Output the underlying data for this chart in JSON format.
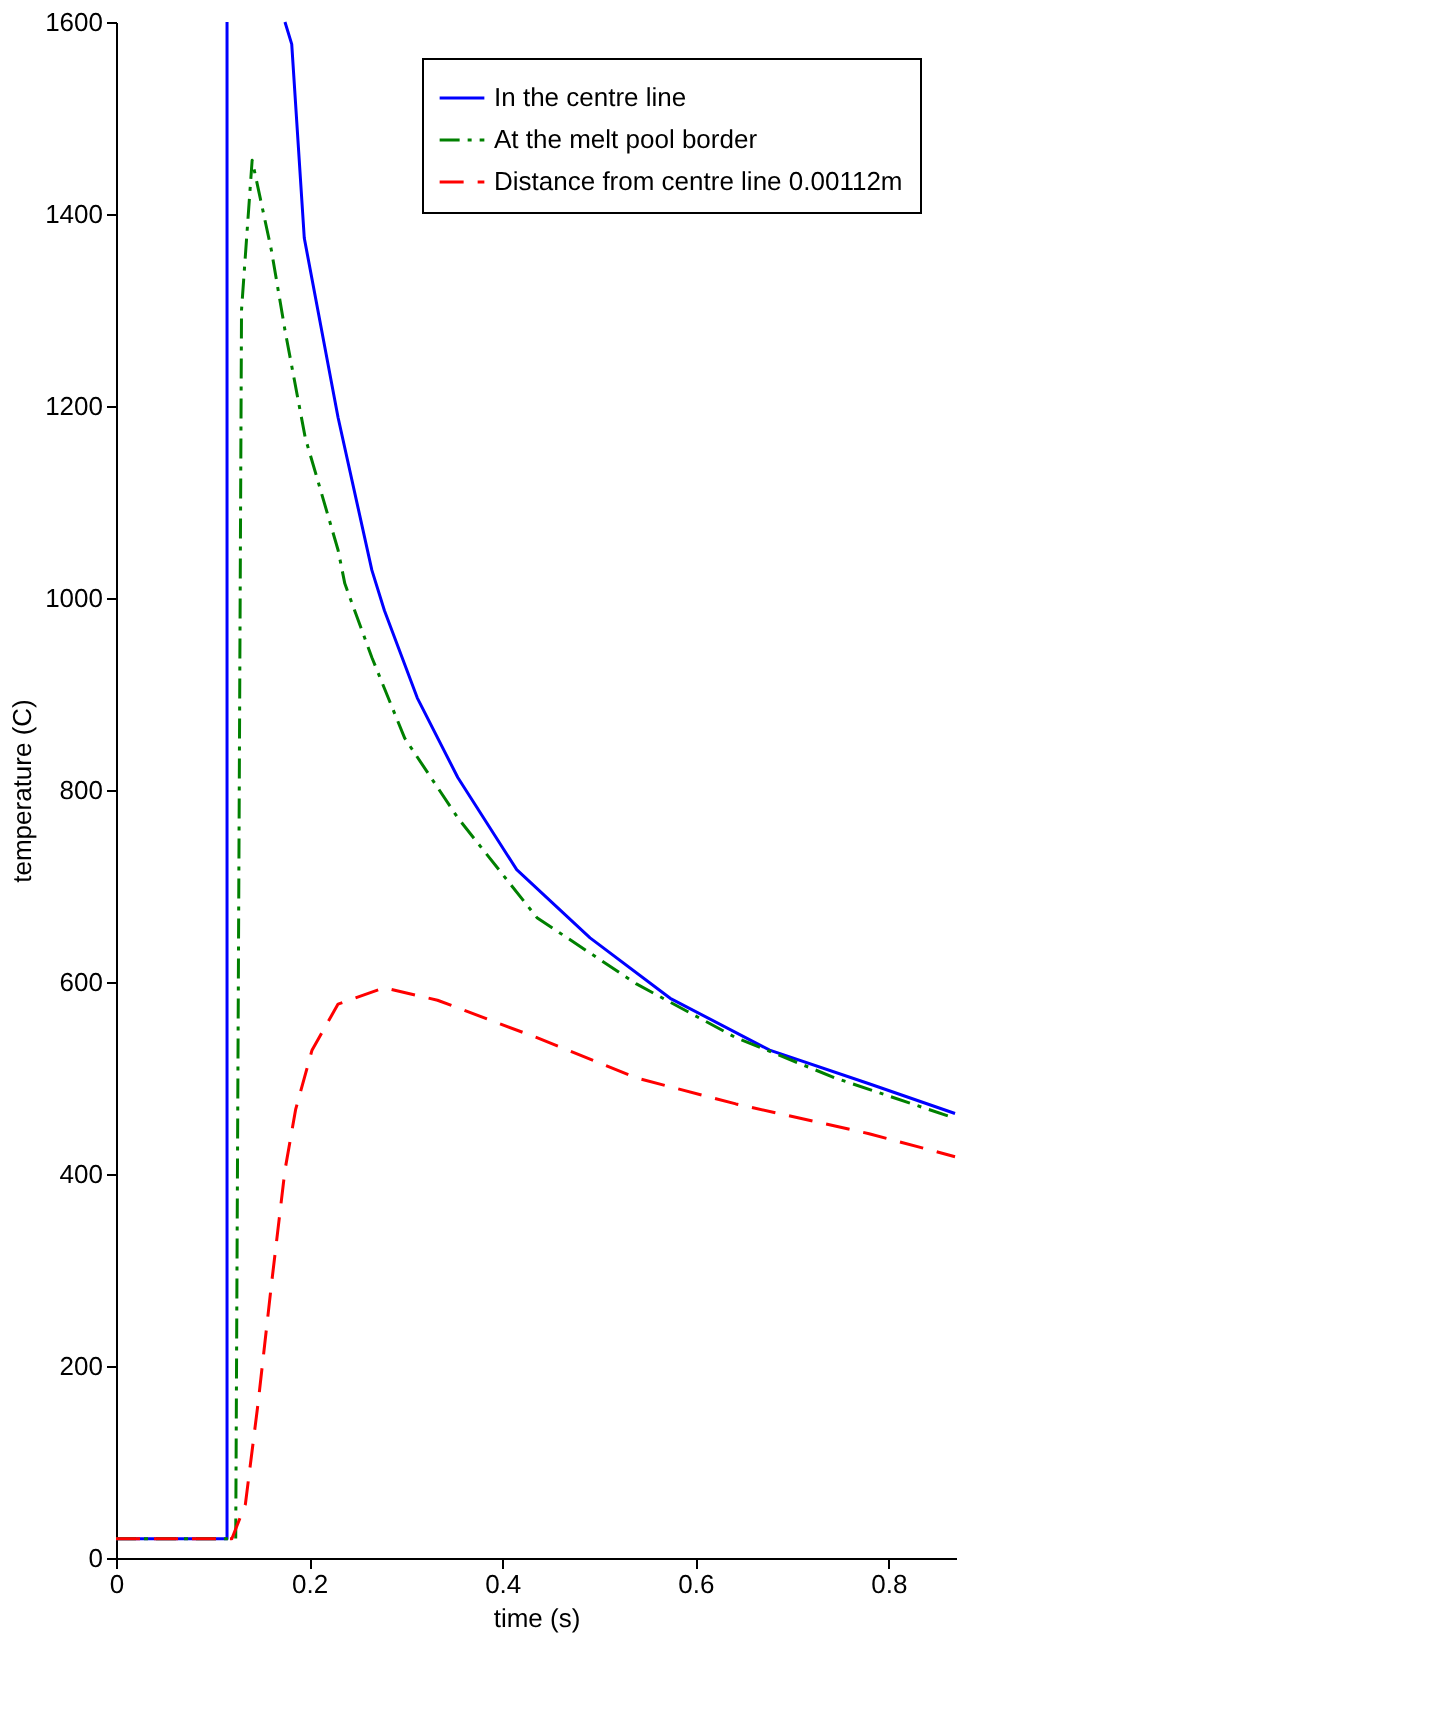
{
  "chart_data": {
    "type": "line",
    "xlabel": "time (s)",
    "ylabel": "temperature (C)",
    "xlim": [
      0,
      0.87
    ],
    "ylim": [
      0,
      1600
    ],
    "xticks": [
      0,
      0.2,
      0.4,
      0.6,
      0.8
    ],
    "yticks": [
      0,
      200,
      400,
      600,
      800,
      1000,
      1200,
      1400,
      1600
    ],
    "grid": false,
    "legend": "top right",
    "marker": "none",
    "series": [
      {
        "name": "In the centre line",
        "color": "#0000ff",
        "line_style": "solid",
        "x": [
          0,
          0.115,
          0.115,
          0.145,
          0.175,
          0.182,
          0.195,
          0.23,
          0.265,
          0.278,
          0.312,
          0.354,
          0.415,
          0.491,
          0.574,
          0.677,
          0.78,
          0.869
        ],
        "values": [
          20,
          20,
          1600,
          null,
          1600,
          1577,
          1375,
          1188,
          1029,
          987,
          896,
          813,
          717,
          646,
          583,
          529,
          494,
          463
        ]
      },
      {
        "name": "At the melt pool border",
        "color": "#008000",
        "line_style": "dashdot",
        "x": [
          0,
          0.124,
          0.13,
          0.141,
          0.161,
          0.175,
          0.196,
          0.23,
          0.237,
          0.265,
          0.299,
          0.354,
          0.436,
          0.539,
          0.642,
          0.745,
          0.869
        ],
        "values": [
          20,
          20,
          1300,
          1456,
          1362,
          1279,
          1167,
          1050,
          1015,
          938,
          854,
          771,
          667,
          598,
          542,
          500,
          458
        ]
      },
      {
        "name": "Distance from centre line 0.00112m",
        "color": "#ff0000",
        "line_style": "dashed",
        "x": [
          0,
          0.12,
          0.134,
          0.147,
          0.161,
          0.175,
          0.186,
          0.203,
          0.23,
          0.278,
          0.333,
          0.436,
          0.539,
          0.642,
          0.78,
          0.869
        ],
        "values": [
          20,
          20,
          56,
          160,
          285,
          404,
          467,
          529,
          577,
          594,
          581,
          542,
          500,
          473,
          442,
          418
        ]
      }
    ]
  }
}
